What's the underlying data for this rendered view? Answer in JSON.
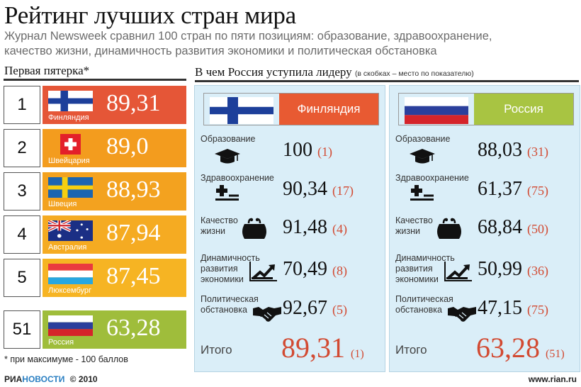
{
  "title": "Рейтинг лучших стран мира",
  "subtitle_line1": "Журнал Newsweek сравнил 100 стран по пяти позициям: образование, здравоохранение,",
  "subtitle_line2": "качество жизни, динамичность развития экономики и политическая обстановка",
  "top5": {
    "heading": "Первая пятерка*",
    "items": [
      {
        "rank": "1",
        "country": "Финляндия",
        "score": "89,31",
        "flag": "finland",
        "color": "#e55637"
      },
      {
        "rank": "2",
        "country": "Швейцария",
        "score": "89,0",
        "flag": "switzerland",
        "color": "#f39c1e"
      },
      {
        "rank": "3",
        "country": "Швеция",
        "score": "88,93",
        "flag": "sweden",
        "color": "#f3a21f"
      },
      {
        "rank": "4",
        "country": "Австралия",
        "score": "87,94",
        "flag": "australia",
        "color": "#f5ab22"
      },
      {
        "rank": "5",
        "country": "Люксембург",
        "score": "87,45",
        "flag": "luxembourg",
        "color": "#f6b423"
      }
    ],
    "russia": {
      "rank": "51",
      "country": "Россия",
      "score": "63,28",
      "flag": "russia",
      "color": "#9fbd3b"
    }
  },
  "comparison": {
    "heading": "В чем Россия уступила лидеру",
    "heading_note": "(в скобках – место по показателю)",
    "finland": {
      "name": "Финляндия",
      "header_color": "#e85a32",
      "rows": [
        {
          "label": "Образование",
          "icon": "graduation-cap-icon",
          "value": "100",
          "rank": "(1)"
        },
        {
          "label": "Здравоохранение",
          "icon": "health-cross-icon",
          "value": "90,34",
          "rank": "(17)"
        },
        {
          "label": "Качество\nжизни",
          "icon": "purse-icon",
          "value": "91,48",
          "rank": "(4)"
        },
        {
          "label": "Динамичность\nразвития\nэкономики",
          "icon": "growth-chart-icon",
          "value": "70,49",
          "rank": "(8)"
        },
        {
          "label": "Политическая\nобстановка",
          "icon": "handshake-icon",
          "value": "92,67",
          "rank": "(5)"
        }
      ],
      "total_label": "Итого",
      "total_value": "89,31",
      "total_rank": "(1)"
    },
    "russia": {
      "name": "Россия",
      "header_color": "#a8c442",
      "rows": [
        {
          "label": "Образование",
          "icon": "graduation-cap-icon",
          "value": "88,03",
          "rank": "(31)"
        },
        {
          "label": "Здравоохранение",
          "icon": "health-cross-icon",
          "value": "61,37",
          "rank": "(75)"
        },
        {
          "label": "Качество\nжизни",
          "icon": "purse-icon",
          "value": "68,84",
          "rank": "(50)"
        },
        {
          "label": "Динамичность\nразвития\nэкономики",
          "icon": "growth-chart-icon",
          "value": "50,99",
          "rank": "(36)"
        },
        {
          "label": "Политическая\nобстановка",
          "icon": "handshake-icon",
          "value": "47,15",
          "rank": "(75)"
        }
      ],
      "total_label": "Итого",
      "total_value": "63,28",
      "total_rank": "(51)"
    }
  },
  "footnote": "* при максимуме - 100 баллов",
  "footer": {
    "logo_ria": "РИА",
    "logo_novosti": "НОВОСТИ",
    "copyright": "© 2010",
    "website": "www.rian.ru"
  }
}
